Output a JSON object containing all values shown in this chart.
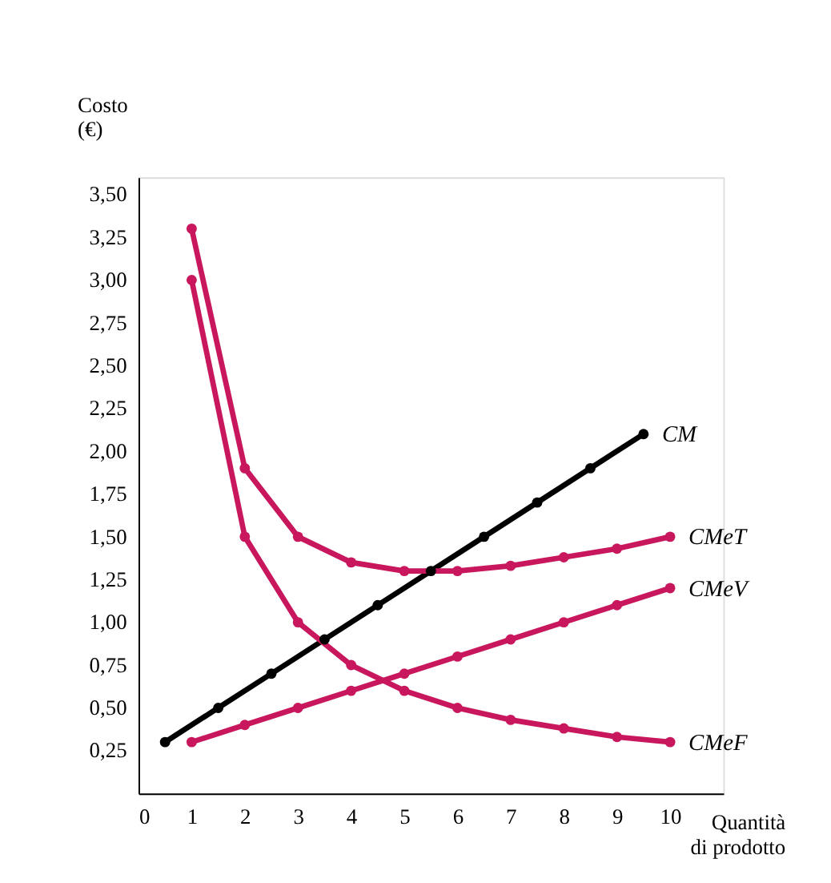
{
  "chart_data": {
    "type": "line",
    "xlabel": "Quantità di prodotto",
    "ylabel": "Costo (€)",
    "x": [
      1,
      2,
      3,
      4,
      5,
      6,
      7,
      8,
      9,
      10
    ],
    "series": [
      {
        "name": "CM",
        "color": "#000000",
        "x": [
          0.5,
          1.5,
          2.5,
          3.5,
          4.5,
          5.5,
          6.5,
          7.5,
          8.5,
          9.5
        ],
        "values": [
          0.3,
          0.5,
          0.7,
          0.9,
          1.1,
          1.3,
          1.5,
          1.7,
          1.9,
          2.1
        ]
      },
      {
        "name": "CMeT",
        "color": "#c8175d",
        "values": [
          3.3,
          1.9,
          1.5,
          1.35,
          1.3,
          1.3,
          1.33,
          1.38,
          1.43,
          1.5
        ]
      },
      {
        "name": "CMeV",
        "color": "#c8175d",
        "values": [
          0.3,
          0.4,
          0.5,
          0.6,
          0.7,
          0.8,
          0.9,
          1.0,
          1.1,
          1.2
        ]
      },
      {
        "name": "CMeF",
        "color": "#c8175d",
        "values": [
          3.0,
          1.5,
          1.0,
          0.75,
          0.6,
          0.5,
          0.43,
          0.38,
          0.33,
          0.3
        ]
      }
    ],
    "xlim": [
      0,
      11
    ],
    "xticks": [
      0,
      1,
      2,
      3,
      4,
      5,
      6,
      7,
      8,
      9,
      10
    ],
    "ylim": [
      0,
      3.6
    ],
    "yticks": [
      {
        "value": 0.25,
        "label": "0,25"
      },
      {
        "value": 0.5,
        "label": "0,50"
      },
      {
        "value": 0.75,
        "label": "0,75"
      },
      {
        "value": 1.0,
        "label": "1,00"
      },
      {
        "value": 1.25,
        "label": "1,25"
      },
      {
        "value": 1.5,
        "label": "1,50"
      },
      {
        "value": 1.75,
        "label": "1,75"
      },
      {
        "value": 2.0,
        "label": "2,00"
      },
      {
        "value": 2.25,
        "label": "2,25"
      },
      {
        "value": 2.5,
        "label": "2,50"
      },
      {
        "value": 2.75,
        "label": "2,75"
      },
      {
        "value": 3.0,
        "label": "3,00"
      },
      {
        "value": 3.25,
        "label": "3,25"
      },
      {
        "value": 3.5,
        "label": "3,50"
      }
    ],
    "grid": false,
    "legend": false,
    "marker": "circle",
    "line_style": "solid"
  }
}
